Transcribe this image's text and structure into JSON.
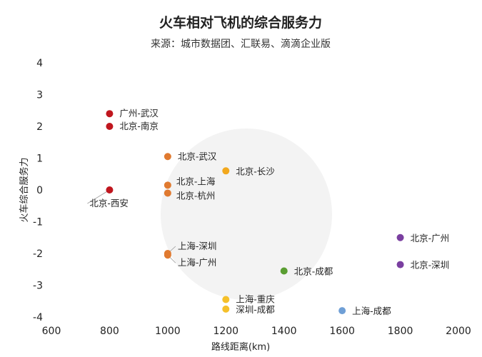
{
  "chart_data": {
    "type": "scatter",
    "title": "火车相对飞机的综合服务力",
    "subtitle": "来源：城市数据团、汇联易、滴滴企业版",
    "xlabel": "路线距离(km)",
    "ylabel": "火车综合服务力",
    "xlim": [
      600,
      2000
    ],
    "ylim": [
      -4,
      4
    ],
    "xticks": [
      600,
      800,
      1000,
      1200,
      1400,
      1600,
      1800,
      2000
    ],
    "yticks": [
      4,
      3,
      2,
      1,
      0,
      -1,
      -2,
      -3,
      -4
    ],
    "grid": false,
    "points": [
      {
        "label": "广州-武汉",
        "x": 800,
        "y": 2.4,
        "color": "#c0161e"
      },
      {
        "label": "北京-南京",
        "x": 800,
        "y": 2.0,
        "color": "#c0161e"
      },
      {
        "label": "北京-西安",
        "x": 800,
        "y": 0.0,
        "color": "#c0161e"
      },
      {
        "label": "北京-武汉",
        "x": 1000,
        "y": 1.05,
        "color": "#e07a30"
      },
      {
        "label": "北京-上海",
        "x": 1000,
        "y": 0.15,
        "color": "#e07a30"
      },
      {
        "label": "北京-杭州",
        "x": 1000,
        "y": -0.1,
        "color": "#e07a30"
      },
      {
        "label": "上海-深圳",
        "x": 1000,
        "y": -2.0,
        "color": "#e07a30"
      },
      {
        "label": "上海-广州",
        "x": 1000,
        "y": -2.05,
        "color": "#e07a30"
      },
      {
        "label": "北京-长沙",
        "x": 1200,
        "y": 0.6,
        "color": "#f2a81d"
      },
      {
        "label": "上海-重庆",
        "x": 1200,
        "y": -3.45,
        "color": "#f5c02a"
      },
      {
        "label": "深圳-成都",
        "x": 1200,
        "y": -3.75,
        "color": "#f5c02a"
      },
      {
        "label": "北京-成都",
        "x": 1400,
        "y": -2.55,
        "color": "#5a9e32"
      },
      {
        "label": "上海-成都",
        "x": 1600,
        "y": -3.8,
        "color": "#6f9fd6"
      },
      {
        "label": "北京-广州",
        "x": 1800,
        "y": -1.5,
        "color": "#7a3fa0"
      },
      {
        "label": "北京-深圳",
        "x": 1800,
        "y": -2.35,
        "color": "#7a3fa0"
      }
    ]
  }
}
